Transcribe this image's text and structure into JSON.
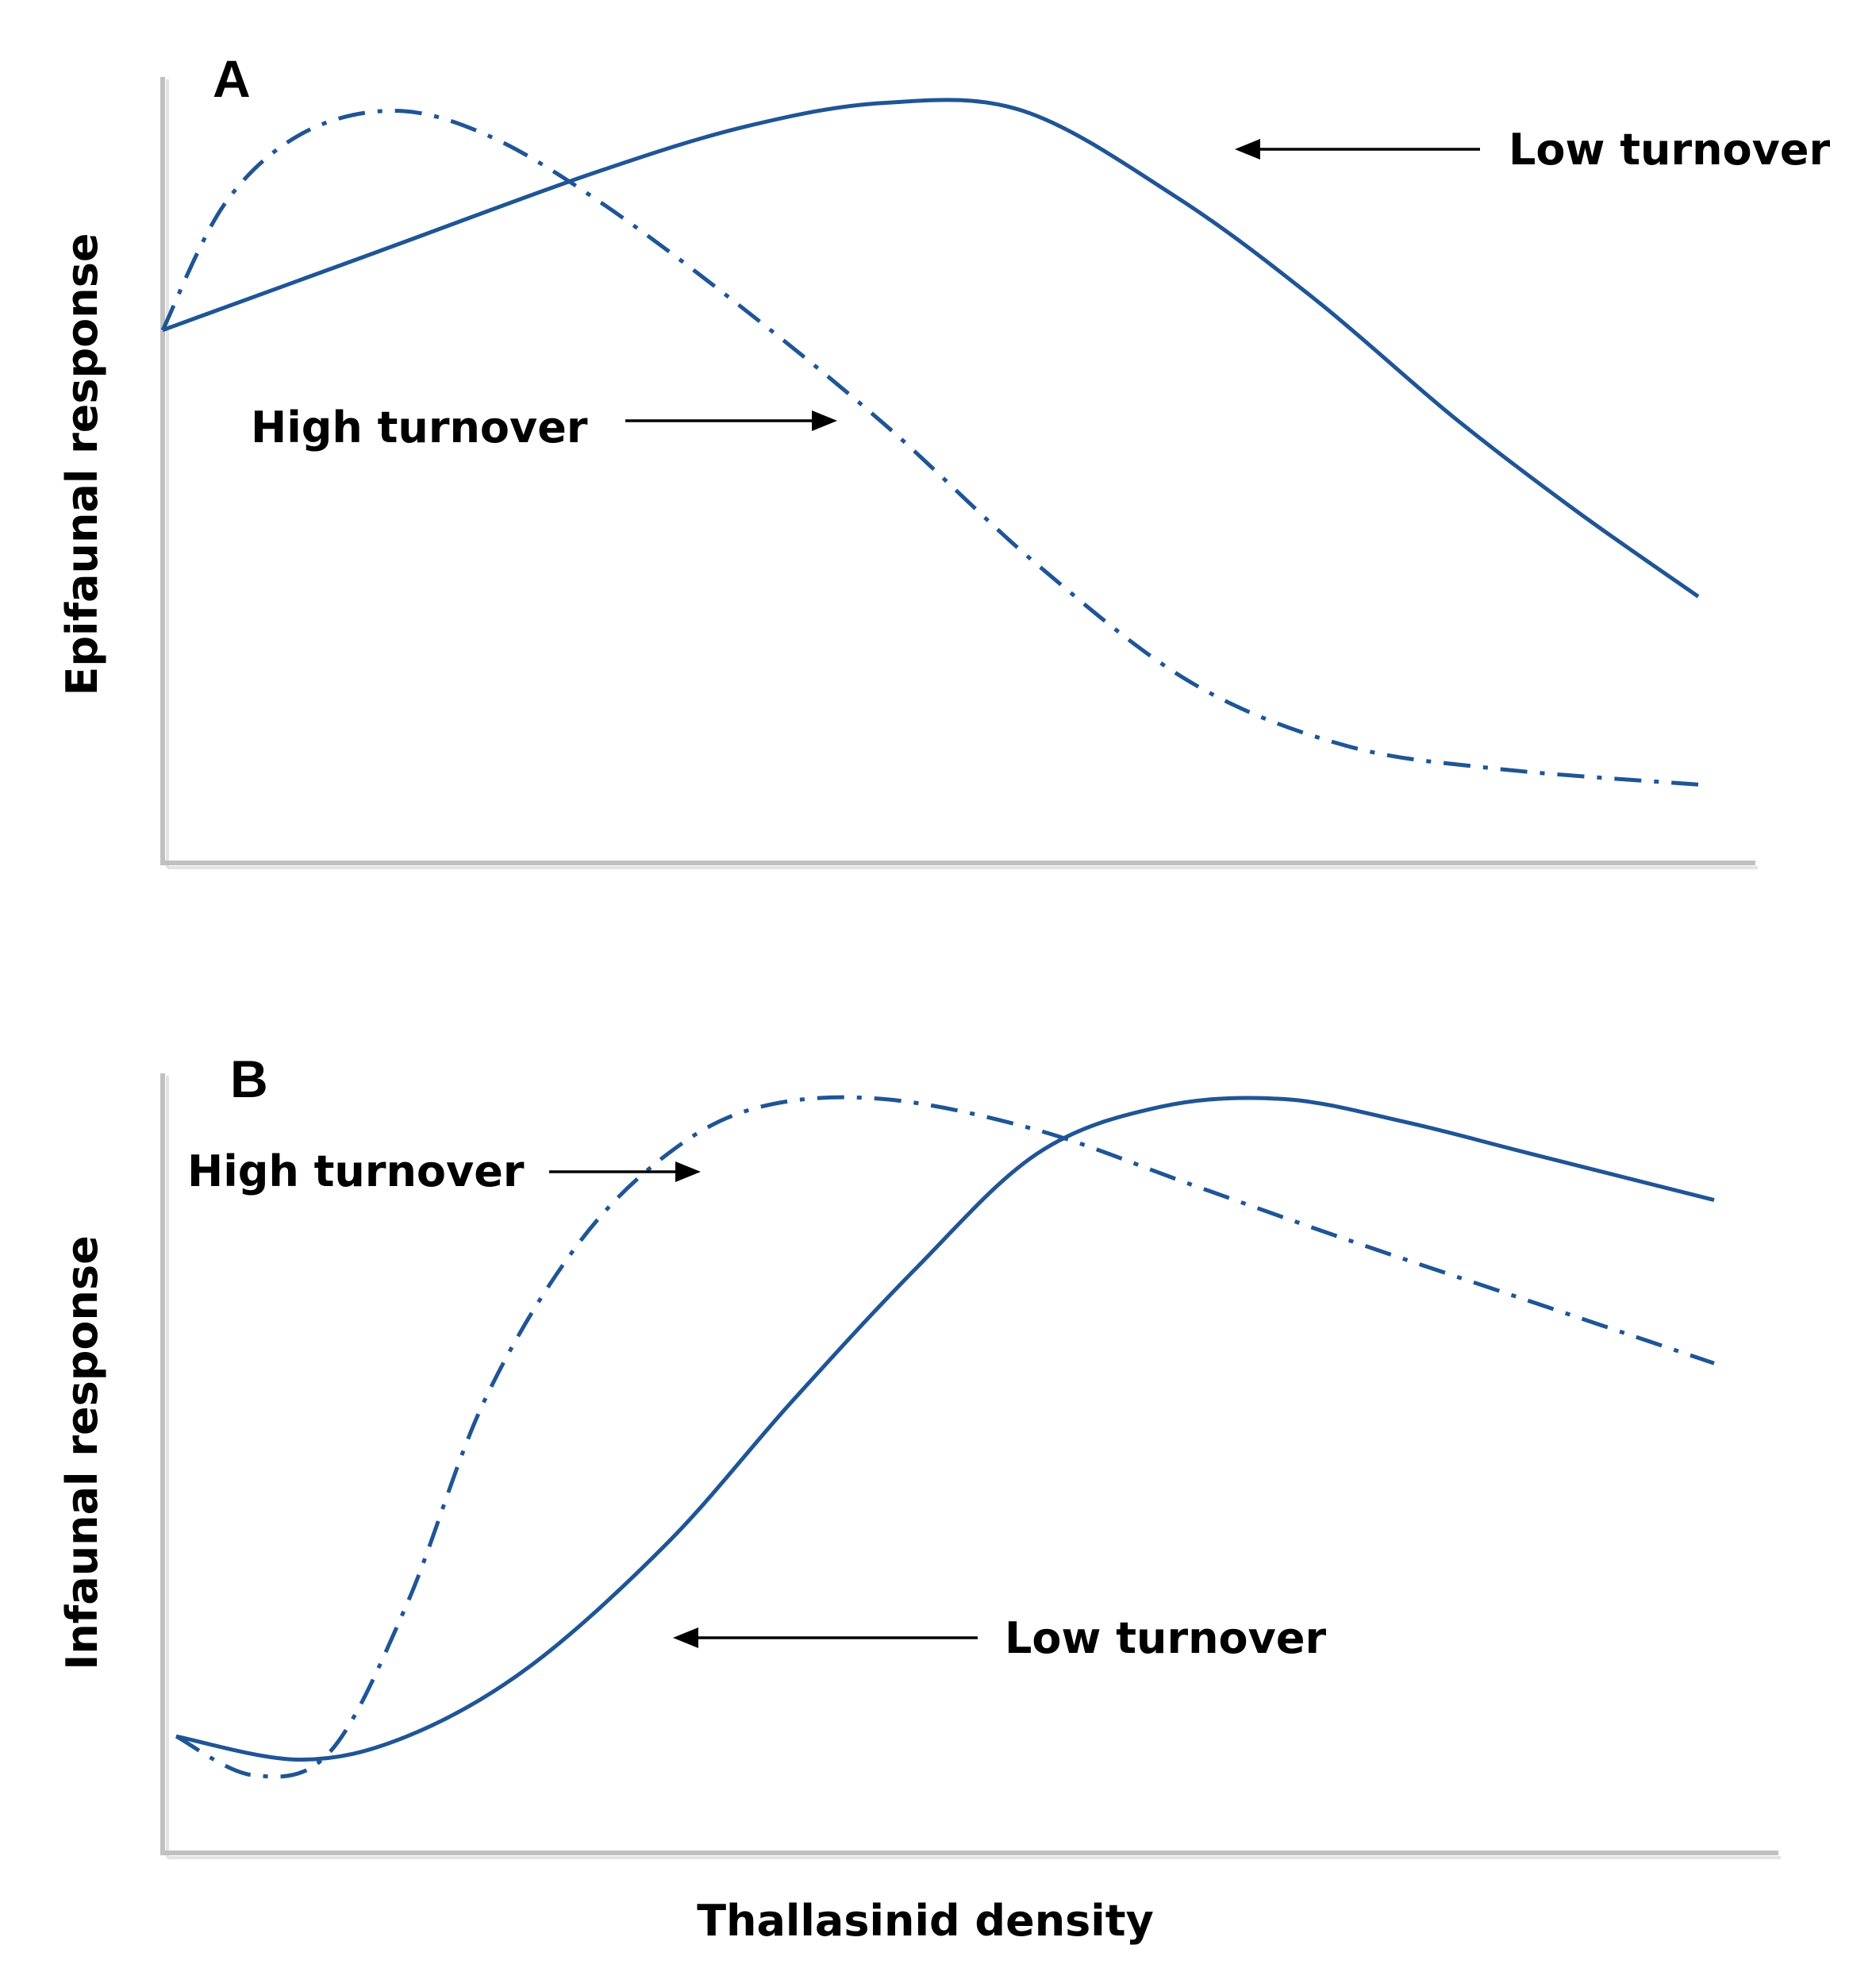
{
  "chart_data": [
    {
      "type": "line",
      "panel": "A",
      "title": "A",
      "xlabel": "Thallasinid density",
      "ylabel": "Epifaunal response",
      "xlim": [
        0,
        100
      ],
      "ylim": [
        0,
        100
      ],
      "grid": false,
      "series": [
        {
          "name": "Low turnover",
          "style": "solid",
          "color": "#1f5596",
          "x": [
            0,
            14,
            28,
            38,
            47,
            56,
            66,
            75,
            84,
            92,
            100
          ],
          "y": [
            68,
            78,
            88,
            94,
            97,
            96,
            85,
            72,
            57,
            45,
            34
          ]
        },
        {
          "name": "High turnover",
          "style": "dash-dot",
          "color": "#1f5596",
          "x": [
            0,
            4,
            9,
            15,
            21,
            28,
            37,
            47,
            57,
            67,
            77,
            87,
            100
          ],
          "y": [
            68,
            84,
            93,
            96,
            93,
            85,
            72,
            56,
            38,
            23,
            15,
            12,
            10
          ]
        }
      ],
      "annotations": [
        {
          "text": "Low turnover",
          "points_to": "Low turnover"
        },
        {
          "text": "High turnover",
          "points_to": "High turnover"
        }
      ]
    },
    {
      "type": "line",
      "panel": "B",
      "title": "B",
      "xlabel": "Thallasinid density",
      "ylabel": "Infaunal response",
      "xlim": [
        0,
        100
      ],
      "ylim": [
        0,
        100
      ],
      "grid": false,
      "series": [
        {
          "name": "Low turnover",
          "style": "solid",
          "color": "#1f5596",
          "x": [
            0,
            8,
            15,
            23,
            32,
            40,
            48,
            56,
            64,
            72,
            80,
            88,
            100
          ],
          "y": [
            15,
            12,
            15,
            24,
            40,
            58,
            75,
            90,
            96,
            97,
            94,
            90,
            84
          ]
        },
        {
          "name": "High turnover",
          "style": "dash-dot",
          "color": "#1f5596",
          "x": [
            0,
            5,
            10,
            15,
            20,
            26,
            32,
            38,
            46,
            56,
            66,
            76,
            88,
            100
          ],
          "y": [
            15,
            10,
            13,
            32,
            58,
            78,
            90,
            96,
            97,
            93,
            86,
            79,
            71,
            63
          ]
        }
      ],
      "annotations": [
        {
          "text": "High turnover",
          "points_to": "High turnover"
        },
        {
          "text": "Low turnover",
          "points_to": "Low turnover"
        }
      ]
    }
  ],
  "shared_xlabel": "Thallasinid density"
}
